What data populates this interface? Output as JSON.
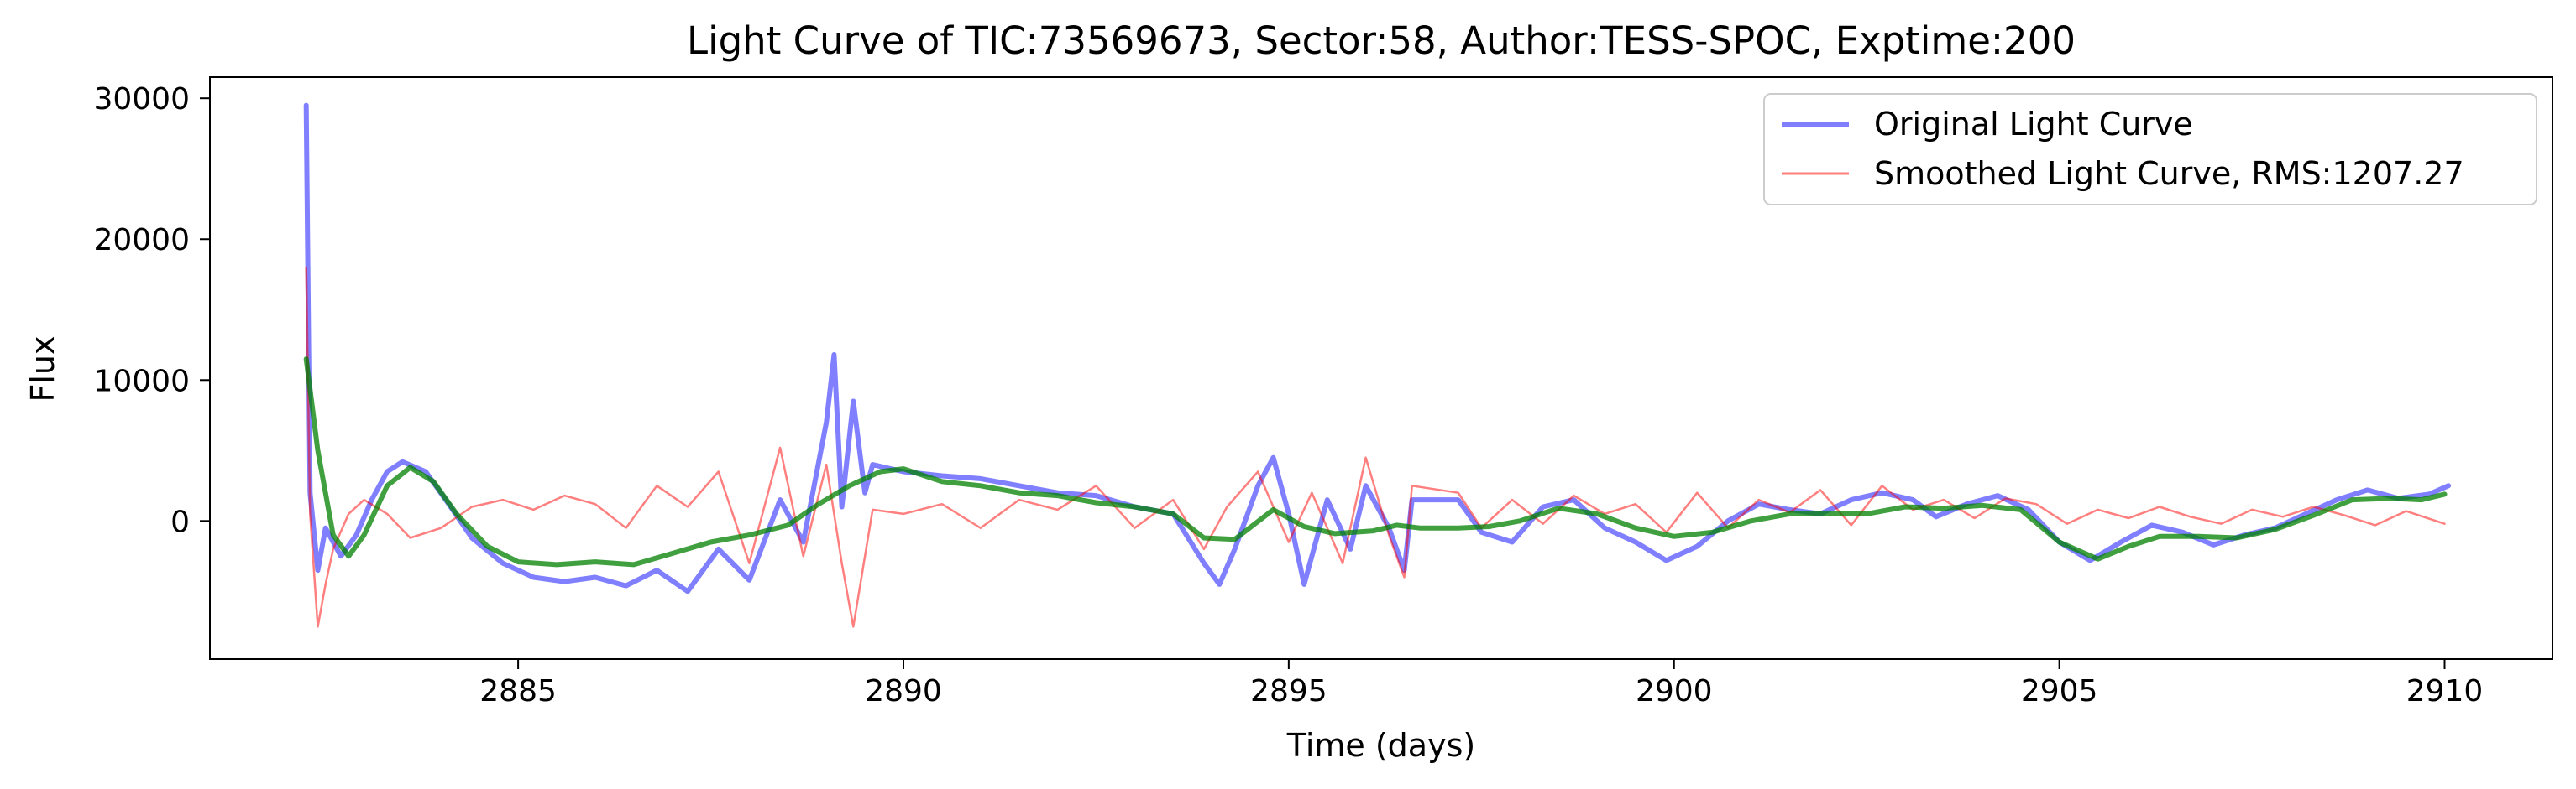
{
  "chart_data": {
    "type": "line",
    "title": "Light Curve of TIC:73569673, Sector:58, Author:TESS-SPOC, Exptime:200",
    "xlabel": "Time (days)",
    "ylabel": "Flux",
    "xlim": [
      2881.0,
      2911.4
    ],
    "ylim": [
      -9800,
      31500
    ],
    "x_ticks": [
      2885,
      2890,
      2895,
      2900,
      2905,
      2910
    ],
    "y_ticks": [
      0,
      10000,
      20000,
      30000
    ],
    "grid": false,
    "legend_position": "upper right",
    "series": [
      {
        "name": "Original Light Curve",
        "color": "#0000ff",
        "opacity": 0.5,
        "width": "thick",
        "points": [
          [
            2882.25,
            29500
          ],
          [
            2882.3,
            2000
          ],
          [
            2882.4,
            -3500
          ],
          [
            2882.5,
            -500
          ],
          [
            2882.6,
            -1500
          ],
          [
            2882.7,
            -2500
          ],
          [
            2882.9,
            -1000
          ],
          [
            2883.1,
            1500
          ],
          [
            2883.3,
            3500
          ],
          [
            2883.5,
            4200
          ],
          [
            2883.8,
            3500
          ],
          [
            2884.1,
            1200
          ],
          [
            2884.4,
            -1200
          ],
          [
            2884.8,
            -3000
          ],
          [
            2885.2,
            -4000
          ],
          [
            2885.6,
            -4300
          ],
          [
            2886.0,
            -4000
          ],
          [
            2886.4,
            -4600
          ],
          [
            2886.8,
            -3500
          ],
          [
            2887.2,
            -5000
          ],
          [
            2887.6,
            -2000
          ],
          [
            2888.0,
            -4200
          ],
          [
            2888.4,
            1500
          ],
          [
            2888.7,
            -1500
          ],
          [
            2889.0,
            7000
          ],
          [
            2889.1,
            11800
          ],
          [
            2889.2,
            1000
          ],
          [
            2889.35,
            8500
          ],
          [
            2889.5,
            2000
          ],
          [
            2889.6,
            4000
          ],
          [
            2890.0,
            3500
          ],
          [
            2890.5,
            3200
          ],
          [
            2891.0,
            3000
          ],
          [
            2891.5,
            2500
          ],
          [
            2892.0,
            2000
          ],
          [
            2892.5,
            1800
          ],
          [
            2893.0,
            1000
          ],
          [
            2893.5,
            500
          ],
          [
            2893.9,
            -3000
          ],
          [
            2894.1,
            -4500
          ],
          [
            2894.3,
            -2000
          ],
          [
            2894.6,
            2500
          ],
          [
            2894.8,
            4500
          ],
          [
            2895.0,
            500
          ],
          [
            2895.2,
            -4500
          ],
          [
            2895.5,
            1500
          ],
          [
            2895.8,
            -2000
          ],
          [
            2896.0,
            2500
          ],
          [
            2896.3,
            -500
          ],
          [
            2896.5,
            -3500
          ],
          [
            2896.6,
            1500
          ],
          [
            2897.2,
            1500
          ],
          [
            2897.5,
            -800
          ],
          [
            2897.9,
            -1500
          ],
          [
            2898.3,
            1000
          ],
          [
            2898.7,
            1500
          ],
          [
            2899.1,
            -500
          ],
          [
            2899.5,
            -1500
          ],
          [
            2899.9,
            -2800
          ],
          [
            2900.3,
            -1800
          ],
          [
            2900.7,
            0
          ],
          [
            2901.1,
            1200
          ],
          [
            2901.5,
            800
          ],
          [
            2901.9,
            500
          ],
          [
            2902.3,
            1500
          ],
          [
            2902.7,
            2000
          ],
          [
            2903.1,
            1500
          ],
          [
            2903.4,
            300
          ],
          [
            2903.8,
            1200
          ],
          [
            2904.2,
            1800
          ],
          [
            2904.6,
            800
          ],
          [
            2905.0,
            -1500
          ],
          [
            2905.4,
            -2800
          ],
          [
            2905.8,
            -1500
          ],
          [
            2906.2,
            -300
          ],
          [
            2906.6,
            -800
          ],
          [
            2907.0,
            -1700
          ],
          [
            2907.4,
            -1000
          ],
          [
            2907.8,
            -500
          ],
          [
            2908.2,
            500
          ],
          [
            2908.6,
            1500
          ],
          [
            2909.0,
            2200
          ],
          [
            2909.4,
            1600
          ],
          [
            2909.8,
            1900
          ],
          [
            2910.05,
            2500
          ]
        ]
      },
      {
        "name": "Smoothed Light Curve, RMS:1207.27",
        "color": "#ff0000",
        "opacity": 0.5,
        "width": "thin",
        "points": [
          [
            2882.25,
            18000
          ],
          [
            2882.3,
            500
          ],
          [
            2882.4,
            -7500
          ],
          [
            2882.5,
            -4500
          ],
          [
            2882.6,
            -2000
          ],
          [
            2882.8,
            500
          ],
          [
            2883.0,
            1500
          ],
          [
            2883.3,
            500
          ],
          [
            2883.6,
            -1200
          ],
          [
            2884.0,
            -500
          ],
          [
            2884.4,
            1000
          ],
          [
            2884.8,
            1500
          ],
          [
            2885.2,
            800
          ],
          [
            2885.6,
            1800
          ],
          [
            2886.0,
            1200
          ],
          [
            2886.4,
            -500
          ],
          [
            2886.8,
            2500
          ],
          [
            2887.2,
            1000
          ],
          [
            2887.6,
            3500
          ],
          [
            2888.0,
            -3000
          ],
          [
            2888.4,
            5200
          ],
          [
            2888.7,
            -2500
          ],
          [
            2889.0,
            4000
          ],
          [
            2889.2,
            -3000
          ],
          [
            2889.35,
            -7500
          ],
          [
            2889.6,
            800
          ],
          [
            2890.0,
            500
          ],
          [
            2890.5,
            1200
          ],
          [
            2891.0,
            -500
          ],
          [
            2891.5,
            1500
          ],
          [
            2892.0,
            800
          ],
          [
            2892.5,
            2500
          ],
          [
            2893.0,
            -500
          ],
          [
            2893.5,
            1500
          ],
          [
            2893.9,
            -2000
          ],
          [
            2894.2,
            1000
          ],
          [
            2894.6,
            3500
          ],
          [
            2895.0,
            -1500
          ],
          [
            2895.3,
            2000
          ],
          [
            2895.7,
            -3000
          ],
          [
            2896.0,
            4500
          ],
          [
            2896.3,
            -1000
          ],
          [
            2896.5,
            -4000
          ],
          [
            2896.6,
            2500
          ],
          [
            2897.2,
            2000
          ],
          [
            2897.5,
            -500
          ],
          [
            2897.9,
            1500
          ],
          [
            2898.3,
            -200
          ],
          [
            2898.7,
            1800
          ],
          [
            2899.1,
            500
          ],
          [
            2899.5,
            1200
          ],
          [
            2899.9,
            -800
          ],
          [
            2900.3,
            2000
          ],
          [
            2900.7,
            -500
          ],
          [
            2901.1,
            1500
          ],
          [
            2901.5,
            600
          ],
          [
            2901.9,
            2200
          ],
          [
            2902.3,
            -300
          ],
          [
            2902.7,
            2500
          ],
          [
            2903.1,
            800
          ],
          [
            2903.5,
            1500
          ],
          [
            2903.9,
            200
          ],
          [
            2904.3,
            1600
          ],
          [
            2904.7,
            1200
          ],
          [
            2905.1,
            -200
          ],
          [
            2905.5,
            800
          ],
          [
            2905.9,
            200
          ],
          [
            2906.3,
            1000
          ],
          [
            2906.7,
            300
          ],
          [
            2907.1,
            -200
          ],
          [
            2907.5,
            800
          ],
          [
            2907.9,
            300
          ],
          [
            2908.3,
            1000
          ],
          [
            2908.7,
            400
          ],
          [
            2909.1,
            -300
          ],
          [
            2909.5,
            700
          ],
          [
            2910.0,
            -200
          ]
        ]
      },
      {
        "name": "",
        "color": "#008000",
        "opacity": 0.75,
        "width": "thick",
        "points": [
          [
            2882.25,
            11500
          ],
          [
            2882.4,
            5000
          ],
          [
            2882.6,
            -1000
          ],
          [
            2882.8,
            -2500
          ],
          [
            2883.0,
            -1000
          ],
          [
            2883.3,
            2500
          ],
          [
            2883.6,
            3800
          ],
          [
            2883.9,
            2800
          ],
          [
            2884.2,
            500
          ],
          [
            2884.6,
            -1800
          ],
          [
            2885.0,
            -2900
          ],
          [
            2885.5,
            -3100
          ],
          [
            2886.0,
            -2900
          ],
          [
            2886.5,
            -3100
          ],
          [
            2887.0,
            -2300
          ],
          [
            2887.5,
            -1500
          ],
          [
            2888.0,
            -1000
          ],
          [
            2888.5,
            -300
          ],
          [
            2888.9,
            1200
          ],
          [
            2889.3,
            2500
          ],
          [
            2889.7,
            3500
          ],
          [
            2890.0,
            3700
          ],
          [
            2890.5,
            2800
          ],
          [
            2891.0,
            2500
          ],
          [
            2891.5,
            2000
          ],
          [
            2892.0,
            1800
          ],
          [
            2892.5,
            1300
          ],
          [
            2893.0,
            1000
          ],
          [
            2893.5,
            500
          ],
          [
            2893.9,
            -1200
          ],
          [
            2894.3,
            -1300
          ],
          [
            2894.8,
            800
          ],
          [
            2895.2,
            -400
          ],
          [
            2895.6,
            -900
          ],
          [
            2896.1,
            -700
          ],
          [
            2896.4,
            -300
          ],
          [
            2896.7,
            -500
          ],
          [
            2897.2,
            -500
          ],
          [
            2897.6,
            -400
          ],
          [
            2898.0,
            0
          ],
          [
            2898.5,
            900
          ],
          [
            2899.0,
            500
          ],
          [
            2899.5,
            -500
          ],
          [
            2900.0,
            -1100
          ],
          [
            2900.5,
            -800
          ],
          [
            2901.0,
            0
          ],
          [
            2901.5,
            500
          ],
          [
            2902.0,
            500
          ],
          [
            2902.5,
            500
          ],
          [
            2903.0,
            1000
          ],
          [
            2903.5,
            900
          ],
          [
            2904.0,
            1100
          ],
          [
            2904.5,
            800
          ],
          [
            2905.0,
            -1500
          ],
          [
            2905.5,
            -2700
          ],
          [
            2905.9,
            -1800
          ],
          [
            2906.3,
            -1100
          ],
          [
            2906.8,
            -1100
          ],
          [
            2907.3,
            -1200
          ],
          [
            2907.8,
            -600
          ],
          [
            2908.3,
            400
          ],
          [
            2908.8,
            1500
          ],
          [
            2909.3,
            1600
          ],
          [
            2909.7,
            1500
          ],
          [
            2910.0,
            1900
          ]
        ]
      }
    ]
  }
}
